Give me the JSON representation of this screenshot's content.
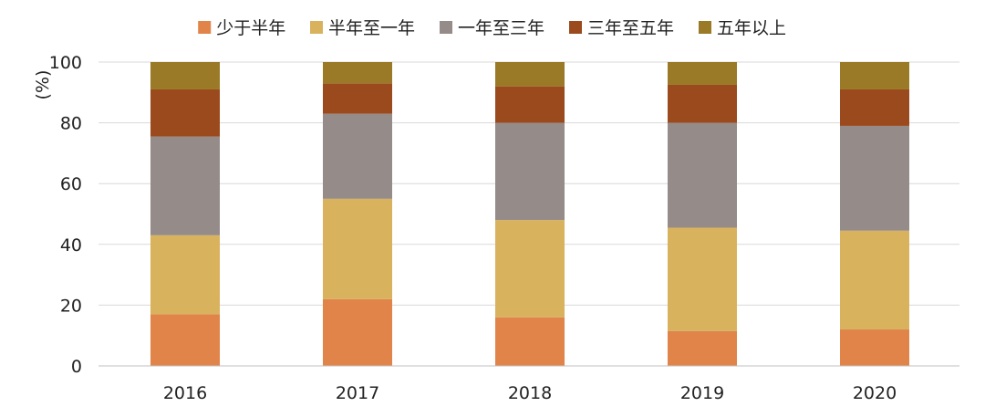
{
  "chart_data": {
    "type": "bar",
    "stacked": true,
    "categories": [
      "2016",
      "2017",
      "2018",
      "2019",
      "2020"
    ],
    "series": [
      {
        "name": "少于半年",
        "color": "#E0844A",
        "values": [
          17,
          22,
          16,
          11.5,
          12
        ]
      },
      {
        "name": "半年至一年",
        "color": "#D9B25E",
        "values": [
          26,
          33,
          32,
          34,
          32.5
        ]
      },
      {
        "name": "一年至三年",
        "color": "#958B88",
        "values": [
          32.5,
          28,
          32,
          34.5,
          34.5
        ]
      },
      {
        "name": "三年至五年",
        "color": "#9B4A1D",
        "values": [
          15.5,
          10,
          12,
          12.5,
          12
        ]
      },
      {
        "name": "五年以上",
        "color": "#9B7A27",
        "values": [
          9,
          7,
          8,
          7.5,
          9
        ]
      }
    ],
    "title": "",
    "xlabel": "",
    "ylabel": "(%)",
    "ylim": [
      0,
      100
    ],
    "yticks": [
      "0",
      "20",
      "40",
      "60",
      "80",
      "100"
    ],
    "grid": true,
    "legend_position": "top"
  }
}
